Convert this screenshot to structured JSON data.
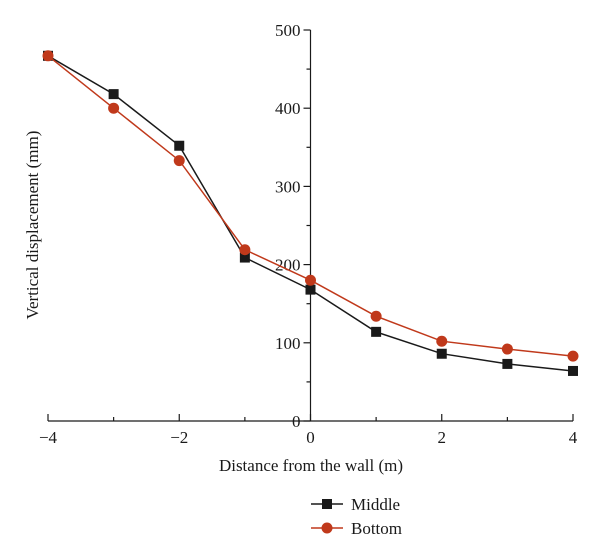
{
  "chart_data": {
    "type": "line",
    "xlabel": "Distance from the wall (m)",
    "ylabel": "Vertical displacement (mm)",
    "xlim": [
      -4,
      4
    ],
    "ylim": [
      0,
      500
    ],
    "xticks": [
      -4,
      -2,
      0,
      2,
      4
    ],
    "yticks": [
      0,
      100,
      200,
      300,
      400,
      500
    ],
    "x": [
      -4,
      -3,
      -2,
      -1,
      0,
      1,
      2,
      3,
      4
    ],
    "series": [
      {
        "name": "Middle",
        "marker": "square",
        "color": "#1a1a1a",
        "values": [
          467,
          418,
          352,
          209,
          168,
          114,
          86,
          73,
          64
        ]
      },
      {
        "name": "Bottom",
        "marker": "circle",
        "color": "#c0391b",
        "values": [
          467,
          400,
          333,
          219,
          180,
          134,
          102,
          92,
          83
        ]
      }
    ],
    "legend": "bottom-center",
    "grid": false
  }
}
